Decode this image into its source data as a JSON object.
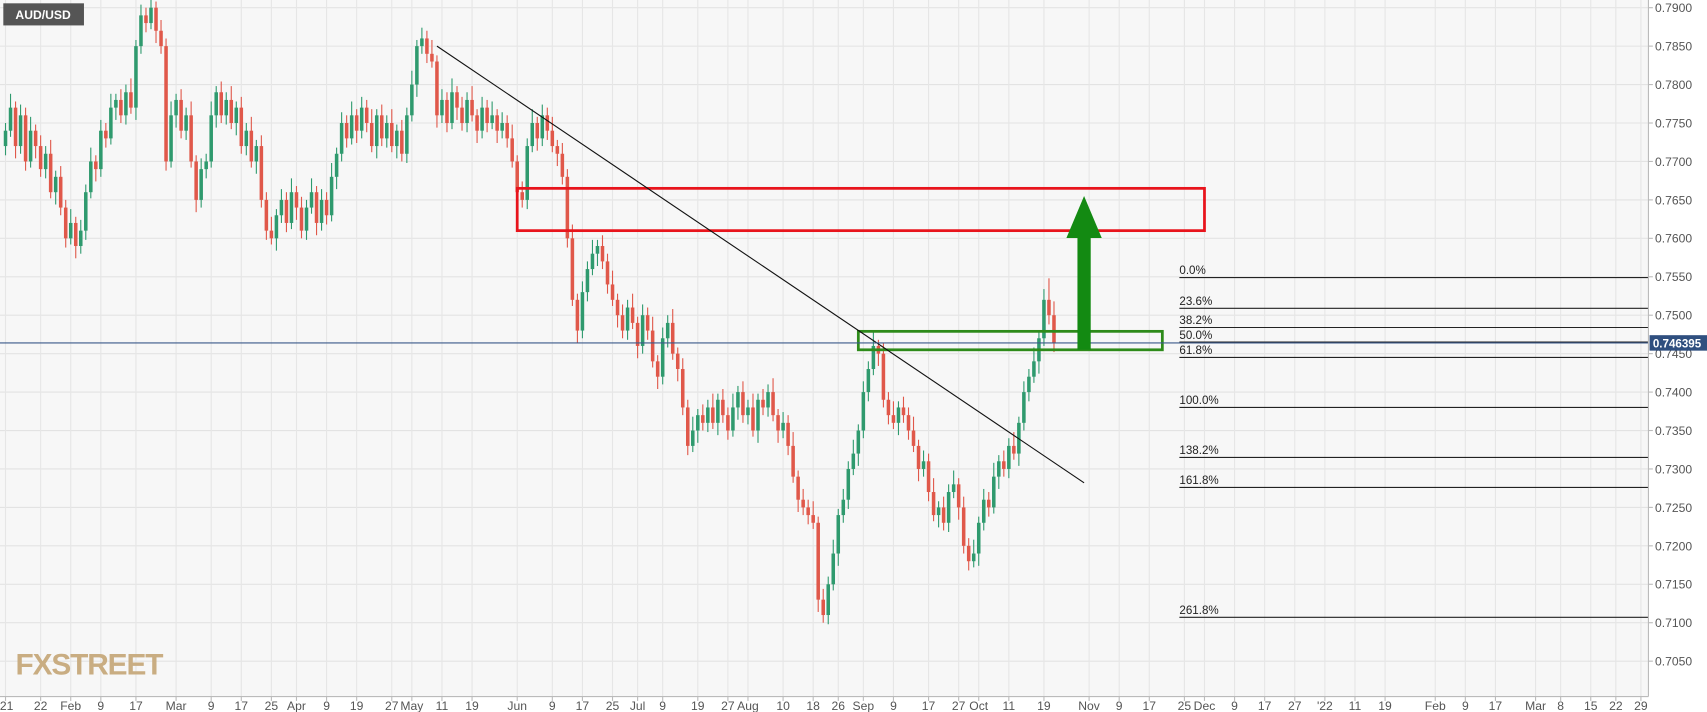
{
  "chart_data": {
    "type": "candlestick",
    "title": "AUD/USD",
    "watermark": "FXSTREET",
    "up_color": "#2f9a6e",
    "down_color": "#e0584a",
    "grid": true,
    "ylim": [
      0.7004,
      0.791
    ],
    "yticks": [
      {
        "value": 0.705,
        "label": "0.7050"
      },
      {
        "value": 0.71,
        "label": "0.7100"
      },
      {
        "value": 0.715,
        "label": "0.7150"
      },
      {
        "value": 0.72,
        "label": "0.7200"
      },
      {
        "value": 0.725,
        "label": "0.7250"
      },
      {
        "value": 0.73,
        "label": "0.7300"
      },
      {
        "value": 0.735,
        "label": "0.7350"
      },
      {
        "value": 0.74,
        "label": "0.7400"
      },
      {
        "value": 0.745,
        "label": "0.7450"
      },
      {
        "value": 0.75,
        "label": "0.7500"
      },
      {
        "value": 0.755,
        "label": "0.7550"
      },
      {
        "value": 0.76,
        "label": "0.7600"
      },
      {
        "value": 0.765,
        "label": "0.7650"
      },
      {
        "value": 0.77,
        "label": "0.7700"
      },
      {
        "value": 0.775,
        "label": "0.7750"
      },
      {
        "value": 0.78,
        "label": "0.7800"
      },
      {
        "value": 0.785,
        "label": "0.7850"
      },
      {
        "value": 0.79,
        "label": "0.7900"
      }
    ],
    "xlim": [
      -1.1,
      327.5
    ],
    "xticks": [
      {
        "value": 0,
        "label": "'21"
      },
      {
        "value": 7,
        "label": "22"
      },
      {
        "value": 13,
        "label": "Feb"
      },
      {
        "value": 19,
        "label": "9"
      },
      {
        "value": 26,
        "label": "17"
      },
      {
        "value": 34,
        "label": "Mar"
      },
      {
        "value": 41,
        "label": "9"
      },
      {
        "value": 47,
        "label": "17"
      },
      {
        "value": 53,
        "label": "25"
      },
      {
        "value": 58,
        "label": "Apr"
      },
      {
        "value": 64,
        "label": "9"
      },
      {
        "value": 70,
        "label": "19"
      },
      {
        "value": 77,
        "label": "27"
      },
      {
        "value": 81,
        "label": "May"
      },
      {
        "value": 87,
        "label": "11"
      },
      {
        "value": 93,
        "label": "19"
      },
      {
        "value": 102,
        "label": "Jun"
      },
      {
        "value": 109,
        "label": "9"
      },
      {
        "value": 115,
        "label": "17"
      },
      {
        "value": 121,
        "label": "25"
      },
      {
        "value": 126,
        "label": "Jul"
      },
      {
        "value": 131,
        "label": "9"
      },
      {
        "value": 138,
        "label": "19"
      },
      {
        "value": 144,
        "label": "27"
      },
      {
        "value": 148,
        "label": "Aug"
      },
      {
        "value": 155,
        "label": "10"
      },
      {
        "value": 161,
        "label": "18"
      },
      {
        "value": 166,
        "label": "26"
      },
      {
        "value": 171,
        "label": "Sep"
      },
      {
        "value": 177,
        "label": "9"
      },
      {
        "value": 184,
        "label": "17"
      },
      {
        "value": 190,
        "label": "27"
      },
      {
        "value": 194,
        "label": "Oct"
      },
      {
        "value": 200,
        "label": "11"
      },
      {
        "value": 207,
        "label": "19"
      },
      {
        "value": 216,
        "label": "Nov"
      },
      {
        "value": 222,
        "label": "9"
      },
      {
        "value": 228,
        "label": "17"
      },
      {
        "value": 235,
        "label": "25"
      },
      {
        "value": 239,
        "label": "Dec"
      },
      {
        "value": 245,
        "label": "9"
      },
      {
        "value": 251,
        "label": "17"
      },
      {
        "value": 257,
        "label": "27"
      },
      {
        "value": 263,
        "label": "'22"
      },
      {
        "value": 269,
        "label": "11"
      },
      {
        "value": 275,
        "label": "19"
      },
      {
        "value": 285,
        "label": "Feb"
      },
      {
        "value": 291,
        "label": "9"
      },
      {
        "value": 297,
        "label": "17"
      },
      {
        "value": 305,
        "label": "Mar"
      },
      {
        "value": 310,
        "label": "8"
      },
      {
        "value": 316,
        "label": "15"
      },
      {
        "value": 321,
        "label": "22"
      },
      {
        "value": 326,
        "label": "29"
      }
    ],
    "last_price": 0.746395,
    "open": [
      0.772,
      0.774,
      0.777,
      0.772,
      0.776,
      0.77,
      0.774,
      0.772,
      0.769,
      0.771,
      0.766,
      0.768,
      0.764,
      0.76,
      0.762,
      0.759,
      0.761,
      0.766,
      0.77,
      0.769,
      0.774,
      0.773,
      0.777,
      0.778,
      0.776,
      0.779,
      0.777,
      0.785,
      0.789,
      0.788,
      0.79,
      0.787,
      0.785,
      0.77,
      0.776,
      0.778,
      0.774,
      0.776,
      0.77,
      0.765,
      0.769,
      0.77,
      0.776,
      0.779,
      0.776,
      0.778,
      0.775,
      0.777,
      0.772,
      0.774,
      0.77,
      0.772,
      0.765,
      0.761,
      0.76,
      0.763,
      0.765,
      0.762,
      0.766,
      0.764,
      0.761,
      0.764,
      0.766,
      0.762,
      0.765,
      0.763,
      0.768,
      0.771,
      0.775,
      0.773,
      0.776,
      0.774,
      0.777,
      0.775,
      0.772,
      0.776,
      0.773,
      0.775,
      0.772,
      0.774,
      0.771,
      0.776,
      0.78,
      0.785,
      0.786,
      0.784,
      0.783,
      0.776,
      0.778,
      0.775,
      0.779,
      0.777,
      0.775,
      0.778,
      0.776,
      0.774,
      0.777,
      0.775,
      0.776,
      0.774,
      0.775,
      0.773,
      0.77,
      0.766,
      0.765,
      0.772,
      0.775,
      0.773,
      0.776,
      0.774,
      0.772,
      0.771,
      0.768,
      0.76,
      0.752,
      0.748,
      0.753,
      0.756,
      0.758,
      0.759,
      0.757,
      0.754,
      0.752,
      0.75,
      0.748,
      0.751,
      0.749,
      0.746,
      0.75,
      0.748,
      0.744,
      0.742,
      0.747,
      0.749,
      0.745,
      0.743,
      0.738,
      0.733,
      0.735,
      0.737,
      0.736,
      0.738,
      0.736,
      0.739,
      0.737,
      0.735,
      0.738,
      0.74,
      0.737,
      0.738,
      0.735,
      0.739,
      0.738,
      0.74,
      0.737,
      0.735,
      0.736,
      0.733,
      0.729,
      0.726,
      0.725,
      0.724,
      0.723,
      0.713,
      0.711,
      0.715,
      0.719,
      0.724,
      0.726,
      0.73,
      0.732,
      0.735,
      0.74,
      0.743,
      0.746,
      0.745,
      0.739,
      0.737,
      0.736,
      0.738,
      0.737,
      0.735,
      0.733,
      0.73,
      0.731,
      0.727,
      0.724,
      0.725,
      0.723,
      0.727,
      0.728,
      0.725,
      0.72,
      0.718,
      0.719,
      0.723,
      0.726,
      0.725,
      0.729,
      0.731,
      0.73,
      0.733,
      0.732,
      0.736,
      0.74,
      0.742,
      0.744,
      0.747,
      0.752,
      0.75
    ],
    "high": [
      0.775,
      0.7788,
      0.7778,
      0.7774,
      0.777,
      0.7758,
      0.7748,
      0.7734,
      0.772,
      0.7728,
      0.7688,
      0.7694,
      0.765,
      0.7638,
      0.7628,
      0.7624,
      0.767,
      0.7718,
      0.7708,
      0.7754,
      0.775,
      0.7788,
      0.7788,
      0.7794,
      0.78,
      0.7808,
      0.7858,
      0.7904,
      0.79,
      0.7918,
      0.7908,
      0.7884,
      0.786,
      0.7778,
      0.7788,
      0.7794,
      0.777,
      0.7778,
      0.7708,
      0.7704,
      0.771,
      0.7778,
      0.7798,
      0.7804,
      0.779,
      0.7798,
      0.7778,
      0.7784,
      0.775,
      0.7758,
      0.7728,
      0.7734,
      0.766,
      0.7628,
      0.7638,
      0.7664,
      0.766,
      0.7678,
      0.7668,
      0.7654,
      0.765,
      0.7678,
      0.7668,
      0.7664,
      0.766,
      0.7698,
      0.7718,
      0.7764,
      0.776,
      0.7778,
      0.7768,
      0.7784,
      0.778,
      0.7768,
      0.7768,
      0.7774,
      0.776,
      0.7768,
      0.7748,
      0.7754,
      0.777,
      0.7818,
      0.7858,
      0.7874,
      0.787,
      0.7858,
      0.7838,
      0.7794,
      0.779,
      0.7808,
      0.7798,
      0.7784,
      0.779,
      0.7798,
      0.7768,
      0.7784,
      0.778,
      0.7778,
      0.7768,
      0.7764,
      0.776,
      0.7748,
      0.7708,
      0.7674,
      0.773,
      0.7768,
      0.7758,
      0.7774,
      0.777,
      0.7758,
      0.7728,
      0.7724,
      0.769,
      0.7618,
      0.7528,
      0.7544,
      0.757,
      0.7598,
      0.7598,
      0.7604,
      0.758,
      0.7558,
      0.7528,
      0.7514,
      0.752,
      0.7528,
      0.7498,
      0.7514,
      0.751,
      0.7498,
      0.7448,
      0.7484,
      0.75,
      0.7508,
      0.7458,
      0.7444,
      0.739,
      0.7368,
      0.7378,
      0.7384,
      0.739,
      0.7398,
      0.7398,
      0.7404,
      0.738,
      0.7398,
      0.7408,
      0.7414,
      0.739,
      0.7398,
      0.7398,
      0.7404,
      0.741,
      0.7418,
      0.7378,
      0.7374,
      0.737,
      0.7348,
      0.7298,
      0.7274,
      0.726,
      0.7258,
      0.7238,
      0.7144,
      0.716,
      0.7208,
      0.7248,
      0.7274,
      0.731,
      0.7338,
      0.7358,
      0.7414,
      0.744,
      0.7478,
      0.7468,
      0.7464,
      0.74,
      0.7388,
      0.7388,
      0.7394,
      0.738,
      0.7368,
      0.7338,
      0.7324,
      0.732,
      0.7288,
      0.7258,
      0.7264,
      0.728,
      0.7298,
      0.7288,
      0.7264,
      0.721,
      0.7208,
      0.7238,
      0.7274,
      0.727,
      0.7308,
      0.7318,
      0.7324,
      0.734,
      0.7348,
      0.7368,
      0.7414,
      0.743,
      0.7458,
      0.7478,
      0.7534,
      0.7548,
      0.7518
    ],
    "low": [
      0.7708,
      0.7732,
      0.7704,
      0.771,
      0.7688,
      0.7692,
      0.7704,
      0.768,
      0.7678,
      0.7652,
      0.7644,
      0.763,
      0.7588,
      0.7592,
      0.7574,
      0.758,
      0.7598,
      0.7652,
      0.7674,
      0.768,
      0.7718,
      0.7722,
      0.7754,
      0.775,
      0.7748,
      0.7762,
      0.7754,
      0.784,
      0.7868,
      0.7872,
      0.7854,
      0.784,
      0.7688,
      0.7692,
      0.7744,
      0.773,
      0.7728,
      0.7692,
      0.7634,
      0.764,
      0.7678,
      0.7692,
      0.7744,
      0.775,
      0.7748,
      0.7742,
      0.7734,
      0.771,
      0.7708,
      0.7692,
      0.7684,
      0.764,
      0.7598,
      0.7592,
      0.7584,
      0.762,
      0.7608,
      0.7612,
      0.7624,
      0.76,
      0.7598,
      0.7632,
      0.7604,
      0.761,
      0.7618,
      0.7622,
      0.7664,
      0.77,
      0.7718,
      0.7722,
      0.7724,
      0.773,
      0.7738,
      0.7712,
      0.7704,
      0.772,
      0.7718,
      0.7712,
      0.7704,
      0.77,
      0.7698,
      0.7752,
      0.7784,
      0.784,
      0.7828,
      0.7822,
      0.7744,
      0.775,
      0.7738,
      0.7742,
      0.7754,
      0.774,
      0.7738,
      0.7752,
      0.7724,
      0.773,
      0.7738,
      0.7742,
      0.7724,
      0.773,
      0.7718,
      0.7692,
      0.7644,
      0.764,
      0.7638,
      0.7712,
      0.7714,
      0.772,
      0.7728,
      0.7712,
      0.7694,
      0.767,
      0.7588,
      0.7512,
      0.7464,
      0.747,
      0.7518,
      0.7552,
      0.7564,
      0.756,
      0.7528,
      0.7512,
      0.7484,
      0.747,
      0.7468,
      0.7482,
      0.7444,
      0.745,
      0.7468,
      0.7432,
      0.7404,
      0.741,
      0.7458,
      0.7442,
      0.7414,
      0.737,
      0.7318,
      0.7322,
      0.7334,
      0.735,
      0.7348,
      0.7352,
      0.7344,
      0.736,
      0.7338,
      0.7342,
      0.7364,
      0.736,
      0.7358,
      0.7342,
      0.7334,
      0.737,
      0.7368,
      0.7362,
      0.7334,
      0.734,
      0.7318,
      0.7282,
      0.7244,
      0.724,
      0.7228,
      0.7222,
      0.7114,
      0.71,
      0.7098,
      0.7142,
      0.7174,
      0.723,
      0.7248,
      0.7292,
      0.7304,
      0.734,
      0.7388,
      0.7422,
      0.7434,
      0.738,
      0.7358,
      0.7352,
      0.7344,
      0.736,
      0.7338,
      0.7322,
      0.7284,
      0.729,
      0.7258,
      0.7232,
      0.7224,
      0.722,
      0.7218,
      0.7262,
      0.7234,
      0.719,
      0.7168,
      0.7172,
      0.7174,
      0.722,
      0.7238,
      0.7242,
      0.7274,
      0.729,
      0.7288,
      0.7312,
      0.7304,
      0.735,
      0.7388,
      0.7412,
      0.7424,
      0.746,
      0.7488,
      0.7452
    ],
    "close": [
      0.774,
      0.777,
      0.772,
      0.776,
      0.77,
      0.774,
      0.772,
      0.769,
      0.771,
      0.766,
      0.768,
      0.764,
      0.76,
      0.762,
      0.759,
      0.761,
      0.766,
      0.77,
      0.769,
      0.774,
      0.773,
      0.777,
      0.778,
      0.776,
      0.779,
      0.777,
      0.785,
      0.789,
      0.788,
      0.79,
      0.787,
      0.785,
      0.77,
      0.776,
      0.778,
      0.774,
      0.776,
      0.77,
      0.765,
      0.769,
      0.77,
      0.776,
      0.779,
      0.776,
      0.778,
      0.775,
      0.777,
      0.772,
      0.774,
      0.77,
      0.772,
      0.765,
      0.761,
      0.76,
      0.763,
      0.765,
      0.762,
      0.766,
      0.764,
      0.761,
      0.764,
      0.766,
      0.762,
      0.765,
      0.763,
      0.768,
      0.771,
      0.775,
      0.773,
      0.776,
      0.774,
      0.777,
      0.775,
      0.772,
      0.776,
      0.773,
      0.775,
      0.772,
      0.774,
      0.771,
      0.776,
      0.78,
      0.785,
      0.786,
      0.784,
      0.783,
      0.776,
      0.778,
      0.775,
      0.779,
      0.777,
      0.775,
      0.778,
      0.776,
      0.774,
      0.777,
      0.775,
      0.776,
      0.774,
      0.775,
      0.773,
      0.77,
      0.766,
      0.765,
      0.772,
      0.775,
      0.773,
      0.776,
      0.774,
      0.772,
      0.771,
      0.768,
      0.76,
      0.752,
      0.748,
      0.753,
      0.756,
      0.758,
      0.759,
      0.757,
      0.754,
      0.752,
      0.75,
      0.748,
      0.751,
      0.749,
      0.746,
      0.75,
      0.748,
      0.744,
      0.742,
      0.747,
      0.749,
      0.745,
      0.743,
      0.738,
      0.733,
      0.735,
      0.737,
      0.736,
      0.738,
      0.736,
      0.739,
      0.737,
      0.735,
      0.738,
      0.74,
      0.737,
      0.738,
      0.735,
      0.739,
      0.738,
      0.74,
      0.737,
      0.735,
      0.736,
      0.733,
      0.729,
      0.726,
      0.725,
      0.724,
      0.723,
      0.713,
      0.711,
      0.715,
      0.719,
      0.724,
      0.726,
      0.73,
      0.732,
      0.735,
      0.74,
      0.743,
      0.746,
      0.745,
      0.739,
      0.737,
      0.736,
      0.738,
      0.737,
      0.735,
      0.733,
      0.73,
      0.731,
      0.727,
      0.724,
      0.725,
      0.723,
      0.727,
      0.728,
      0.725,
      0.72,
      0.718,
      0.719,
      0.723,
      0.726,
      0.725,
      0.729,
      0.731,
      0.73,
      0.733,
      0.732,
      0.736,
      0.74,
      0.742,
      0.744,
      0.747,
      0.752,
      0.75,
      0.746395
    ],
    "zones": [
      {
        "color": "#e8141c",
        "x": [
          102,
          239
        ],
        "y": [
          0.7665,
          0.761
        ]
      },
      {
        "color": "#2e8b1a",
        "x": [
          170,
          230.6
        ],
        "y": [
          0.7479,
          0.7455
        ]
      }
    ],
    "trendline": {
      "color": "#111111",
      "x": [
        86,
        215
      ],
      "y": [
        0.785,
        0.7282
      ]
    },
    "arrow": {
      "color": "#138a12",
      "x": 215,
      "y": [
        0.7455,
        0.7655
      ]
    },
    "fibonacci": {
      "start": 234,
      "levels": [
        {
          "label": "0.0%",
          "price": 0.7549
        },
        {
          "label": "23.6%",
          "price": 0.7509
        },
        {
          "label": "38.2%",
          "price": 0.7484
        },
        {
          "label": "50.0%",
          "price": 0.7465
        },
        {
          "label": "61.8%",
          "price": 0.7445
        },
        {
          "label": "100.0%",
          "price": 0.738
        },
        {
          "label": "138.2%",
          "price": 0.7315
        },
        {
          "label": "161.8%",
          "price": 0.7276
        },
        {
          "label": "261.8%",
          "price": 0.7107
        }
      ]
    }
  }
}
